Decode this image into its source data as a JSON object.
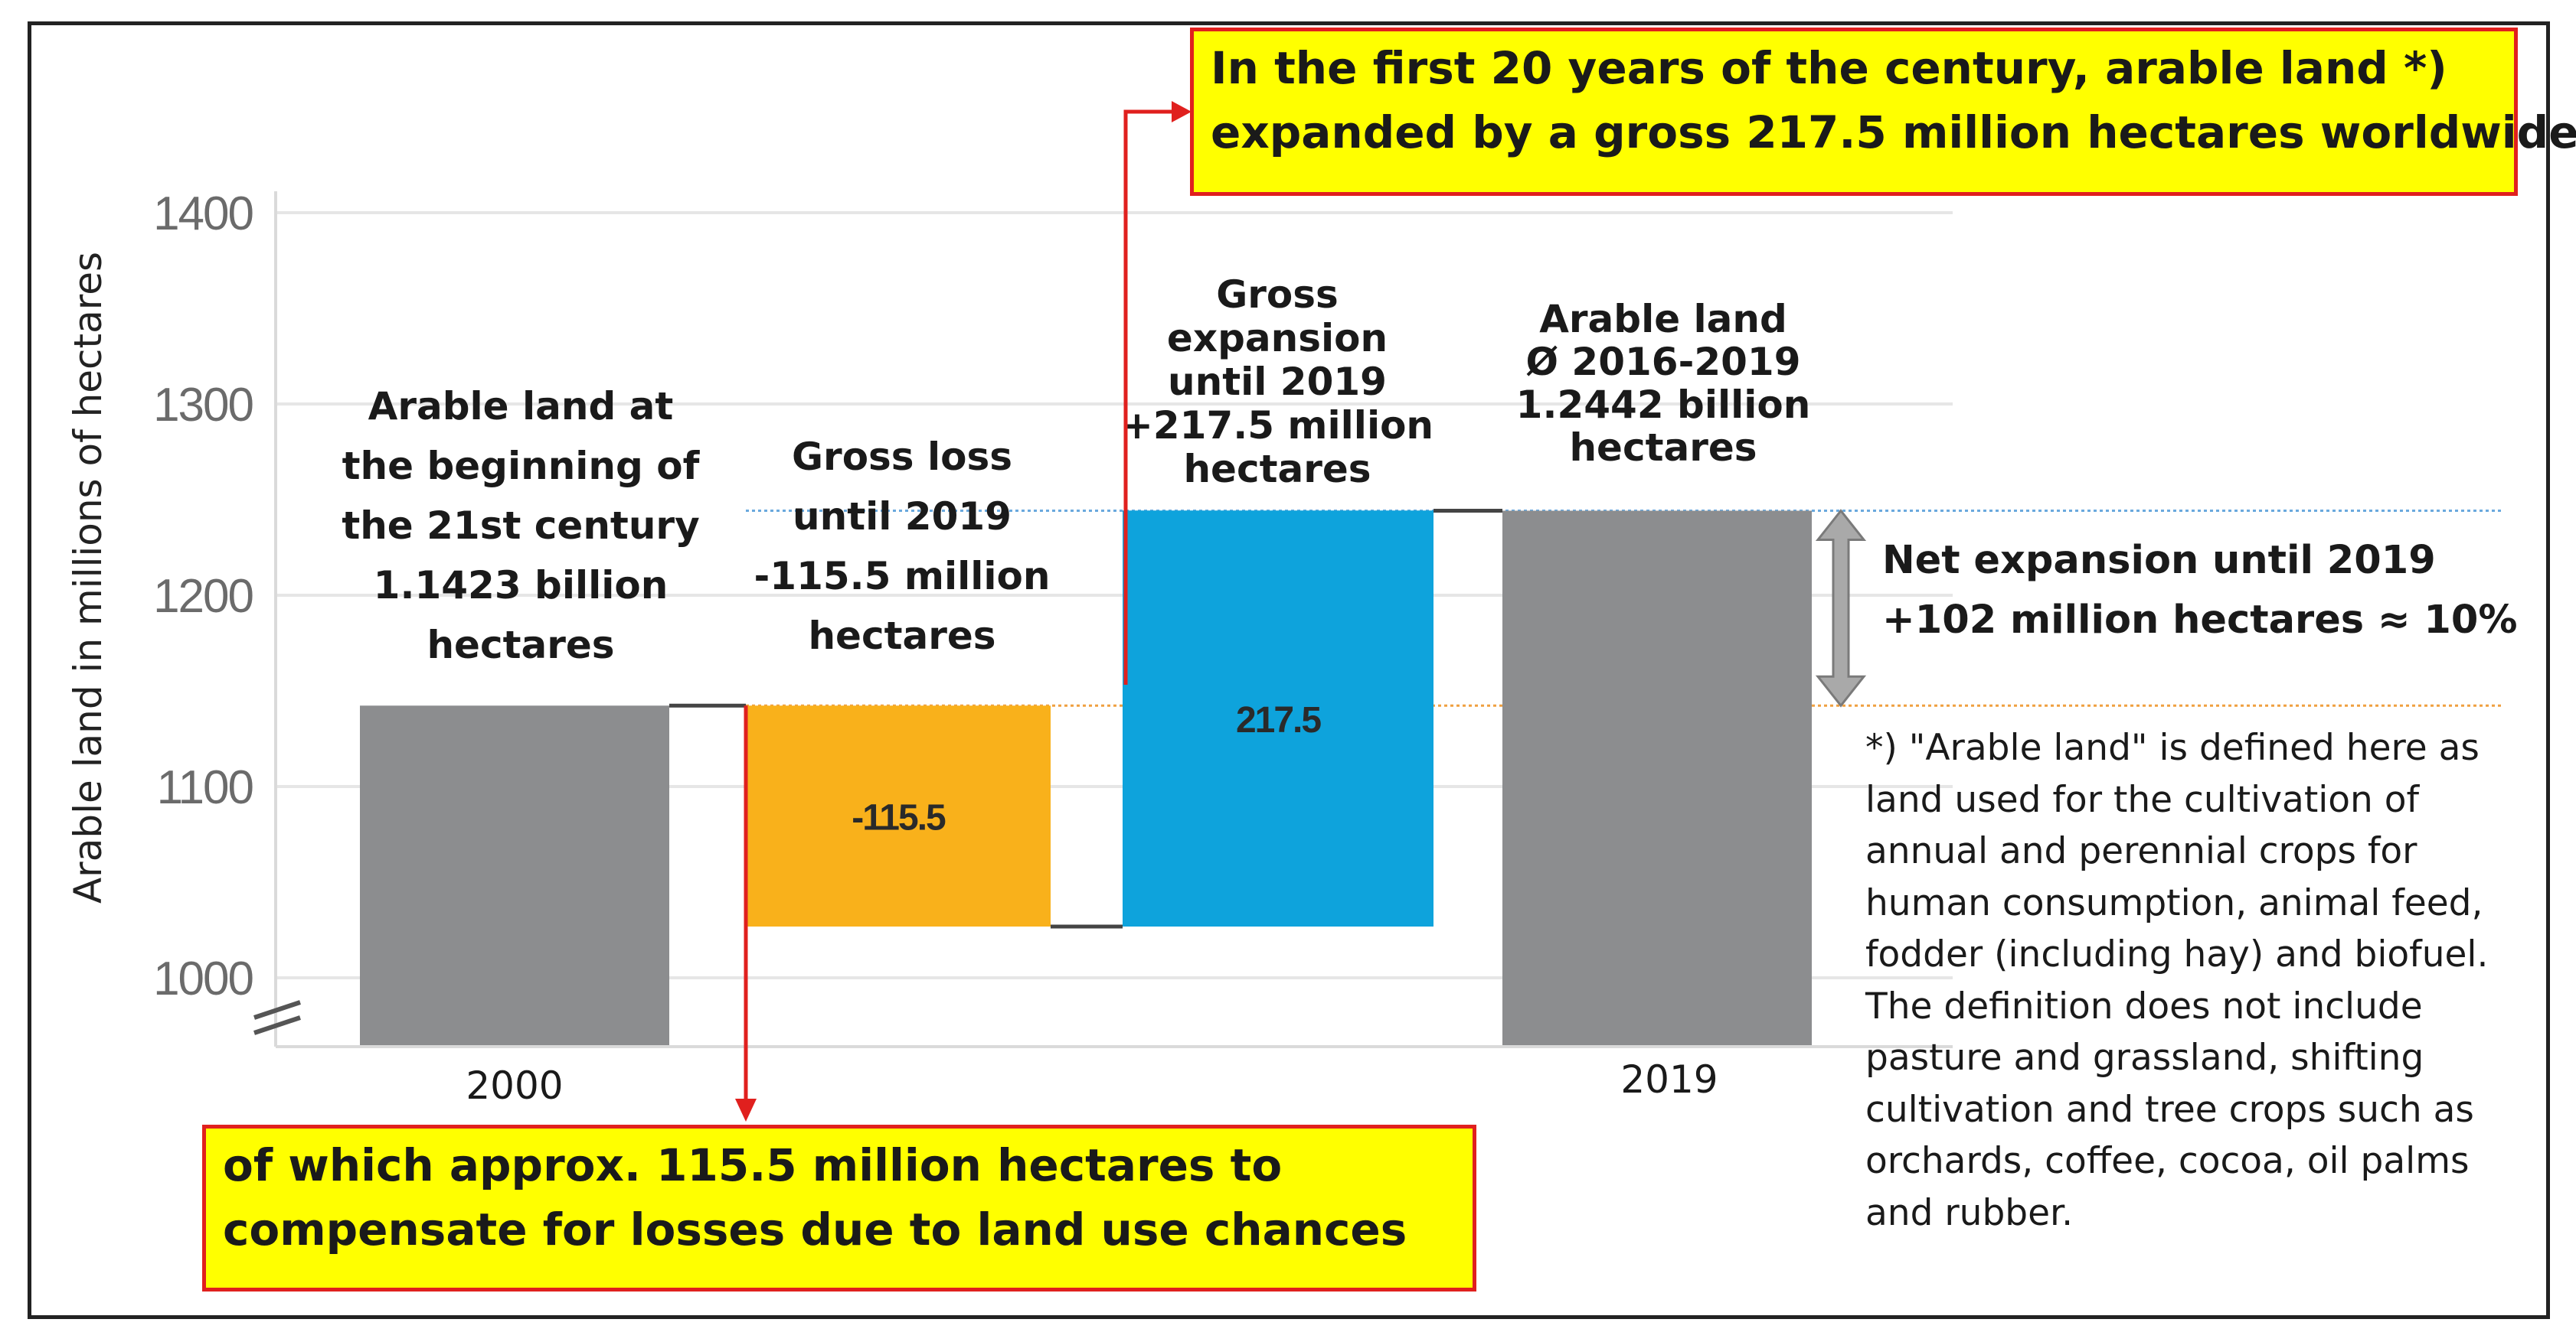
{
  "chart_data": {
    "type": "waterfall",
    "ylabel": "Arable land in millions of hectares",
    "ylim": [
      965,
      1400
    ],
    "yticks": [
      1000,
      1100,
      1200,
      1300,
      1400
    ],
    "ytick_labels": [
      "1000",
      "1100",
      "1200",
      "1300",
      "1400"
    ],
    "grid": true,
    "axis_break": true,
    "categories": [
      "2000",
      "",
      "",
      "2019"
    ],
    "bars": [
      {
        "name": "start",
        "base": 965,
        "top": 1142.3,
        "color": "#8c8d8f",
        "label": ""
      },
      {
        "name": "loss",
        "base": 1026.8,
        "top": 1142.3,
        "color": "#f9b11b",
        "label": "-115.5"
      },
      {
        "name": "gain",
        "base": 1026.8,
        "top": 1244.3,
        "color": "#0ea3dc",
        "label": "217.5"
      },
      {
        "name": "end",
        "base": 965,
        "top": 1244.2,
        "color": "#8c8d8f",
        "label": ""
      }
    ],
    "connectors": [
      1142.3,
      1026.8,
      1244.2
    ],
    "reference_lines": [
      {
        "value": 1142.3,
        "color": "#f0a040",
        "style": "dotted"
      },
      {
        "value": 1244.2,
        "color": "#6aa9de",
        "style": "dotted"
      }
    ],
    "annotations": {
      "start": [
        "Arable land at",
        "the beginning of",
        "the 21st century",
        "1.1423 billion",
        "hectares"
      ],
      "loss": [
        "Gross loss",
        "until 2019",
        "-115.5 million",
        "hectares"
      ],
      "gain": [
        "Gross",
        "expansion",
        "until 2019",
        "+217.5 million",
        "hectares"
      ],
      "end": [
        "Arable land",
        "Ø 2016-2019",
        "1.2442 billion",
        "hectares"
      ]
    },
    "net_expansion": [
      "Net expansion until 2019",
      "+102 million hectares ≈ 10%"
    ]
  },
  "callouts": {
    "top": [
      "In the first 20 years of the century, arable land *)",
      "expanded by a gross 217.5 million hectares worldwide"
    ],
    "bottom": [
      "of which approx. 115.5 million hectares to",
      "compensate for losses due to land use chances"
    ]
  },
  "footnote": [
    "*) \"Arable land\" is defined here as",
    "land used for the cultivation of",
    "annual and perennial crops for",
    "human consumption, animal feed,",
    "fodder (including hay) and biofuel.",
    "The definition does not include",
    "pasture and grassland, shifting",
    "cultivation and tree crops such as",
    "orchards, coffee, cocoa, oil palms",
    "and rubber."
  ],
  "colors": {
    "grey_bar": "#8c8d8f",
    "loss_bar": "#f9b11b",
    "gain_bar": "#0ea3dc",
    "callout_bg": "#ffff00",
    "callout_border": "#e0201e",
    "arrow": "#e0201e"
  }
}
